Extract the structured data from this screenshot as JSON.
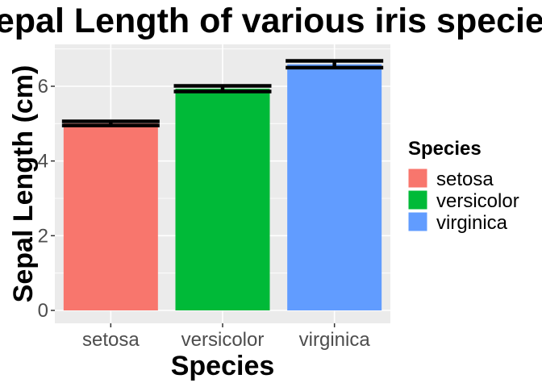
{
  "chart_data": {
    "type": "bar",
    "title": "Sepal Length of various iris species",
    "xlabel": "Species",
    "ylabel": "Sepal Length (cm)",
    "categories": [
      "setosa",
      "versicolor",
      "virginica"
    ],
    "values": [
      5.006,
      5.936,
      6.588
    ],
    "error_bars": [
      {
        "low": 4.95,
        "high": 5.06
      },
      {
        "low": 5.86,
        "high": 6.01
      },
      {
        "low": 6.5,
        "high": 6.68
      }
    ],
    "colors": [
      "#F8766D",
      "#00BA38",
      "#619CFF"
    ],
    "ylim": [
      0,
      7.2
    ],
    "yticks": [
      "0",
      "2",
      "4",
      "6"
    ],
    "grid": true,
    "legend": {
      "title": "Species",
      "placement": "right",
      "entries": [
        "setosa",
        "versicolor",
        "virginica"
      ]
    }
  }
}
